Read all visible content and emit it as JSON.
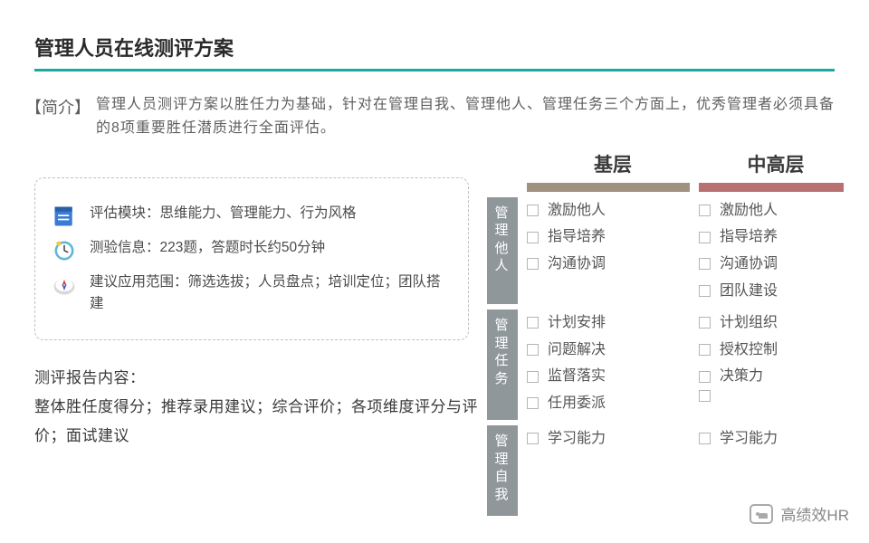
{
  "title": "管理人员在线测评方案",
  "intro": {
    "tag": "【简介】",
    "text": "管理人员测评方案以胜任力为基础，针对在管理自我、管理他人、管理任务三个方面上，优秀管理者必须具备的8项重要胜任潜质进行全面评估。"
  },
  "info_box": {
    "line1": "评估模块：思维能力、管理能力、行为风格",
    "line2": "测验信息：223题，答题时长约50分钟",
    "line3": "建议应用范围：筛选选拔；人员盘点；培训定位；团队搭建"
  },
  "report": {
    "heading": "测评报告内容：",
    "body": "整体胜任度得分；推荐录用建议；综合评价；各项维度评分与评价；面试建议"
  },
  "columns": {
    "a": "基层",
    "b": "中高层"
  },
  "bars": {
    "a_color": "#9f9380",
    "b_color": "#b97070"
  },
  "sections": {
    "s1": {
      "label": "管理他人",
      "a": [
        "激励他人",
        "指导培养",
        "沟通协调"
      ],
      "b": [
        "激励他人",
        "指导培养",
        "沟通协调",
        "团队建设"
      ]
    },
    "s2": {
      "label": "管理任务",
      "a": [
        "计划安排",
        "问题解决",
        "监督落实",
        "任用委派"
      ],
      "b": [
        "计划组织",
        "授权控制",
        "决策力",
        ""
      ]
    },
    "s3": {
      "label": "管理自我",
      "a": [
        "学习能力"
      ],
      "b": [
        "学习能力"
      ]
    }
  },
  "watermark": "高绩效HR",
  "colors": {
    "accent": "#1aa9a0",
    "vlabel_bg": "#8f979a",
    "text": "#3a3a3a",
    "muted": "#606060"
  }
}
